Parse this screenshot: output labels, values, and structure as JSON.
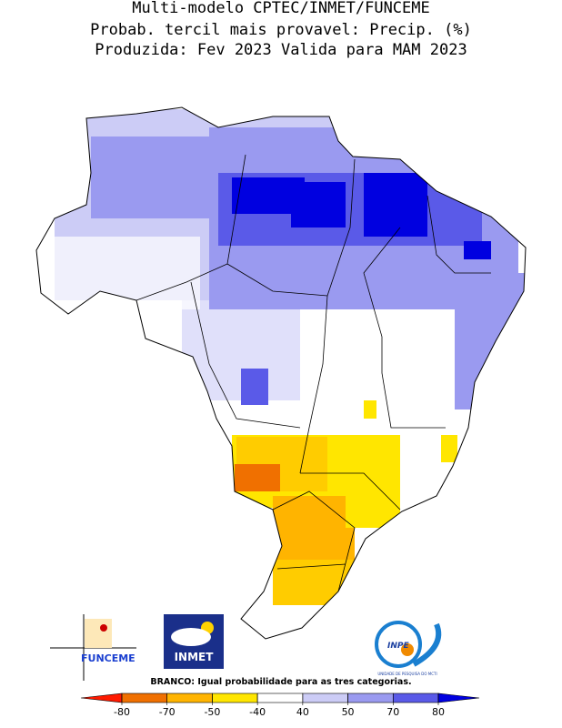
{
  "header": {
    "line1": "Multi-modelo CPTEC/INMET/FUNCEME",
    "line2": "Probab. tercil mais provavel: Precip. (%)",
    "line3": "Produzida: Fev 2023  Valida para MAM 2023"
  },
  "logos": {
    "funceme": "FUNCEME",
    "inmet": "INMET",
    "inpe": "INPE",
    "inpe_caption": "UNIDADE DE PESQUISA DO MCTI"
  },
  "legend": {
    "note": "BRANCO: Igual probabilidade para as tres categorias.",
    "ticks": [
      -80,
      -70,
      -50,
      -40,
      40,
      50,
      70,
      80
    ],
    "colors": [
      "#ff1a00",
      "#f07000",
      "#ffb400",
      "#ffe600",
      "#ffffff",
      "#ccccf6",
      "#9a9af0",
      "#5a5ae8",
      "#0000e0"
    ]
  }
}
